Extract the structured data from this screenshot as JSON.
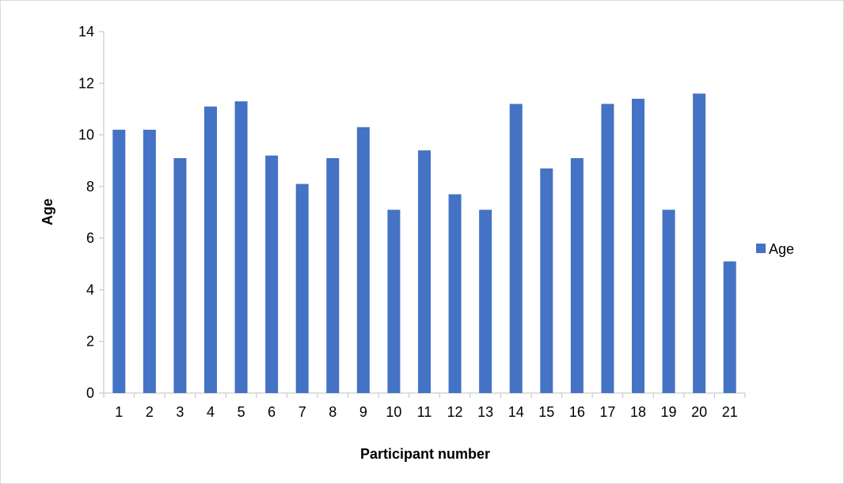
{
  "chart_data": {
    "type": "bar",
    "title": "",
    "xlabel": "Participant number",
    "ylabel": "Age",
    "categories": [
      "1",
      "2",
      "3",
      "4",
      "5",
      "6",
      "7",
      "8",
      "9",
      "10",
      "11",
      "12",
      "13",
      "14",
      "15",
      "16",
      "17",
      "18",
      "19",
      "20",
      "21"
    ],
    "series": [
      {
        "name": "Age",
        "color": "#4472c4",
        "values": [
          10.2,
          10.2,
          9.1,
          11.1,
          11.3,
          9.2,
          8.1,
          9.1,
          10.3,
          7.1,
          9.4,
          7.7,
          7.1,
          11.2,
          8.7,
          9.1,
          11.2,
          11.4,
          7.1,
          11.6,
          5.1
        ]
      }
    ],
    "ylim": [
      0,
      14
    ],
    "yticks": [
      "0",
      "2",
      "4",
      "6",
      "8",
      "10",
      "12",
      "14"
    ],
    "grid": false,
    "legend_position": "right"
  }
}
